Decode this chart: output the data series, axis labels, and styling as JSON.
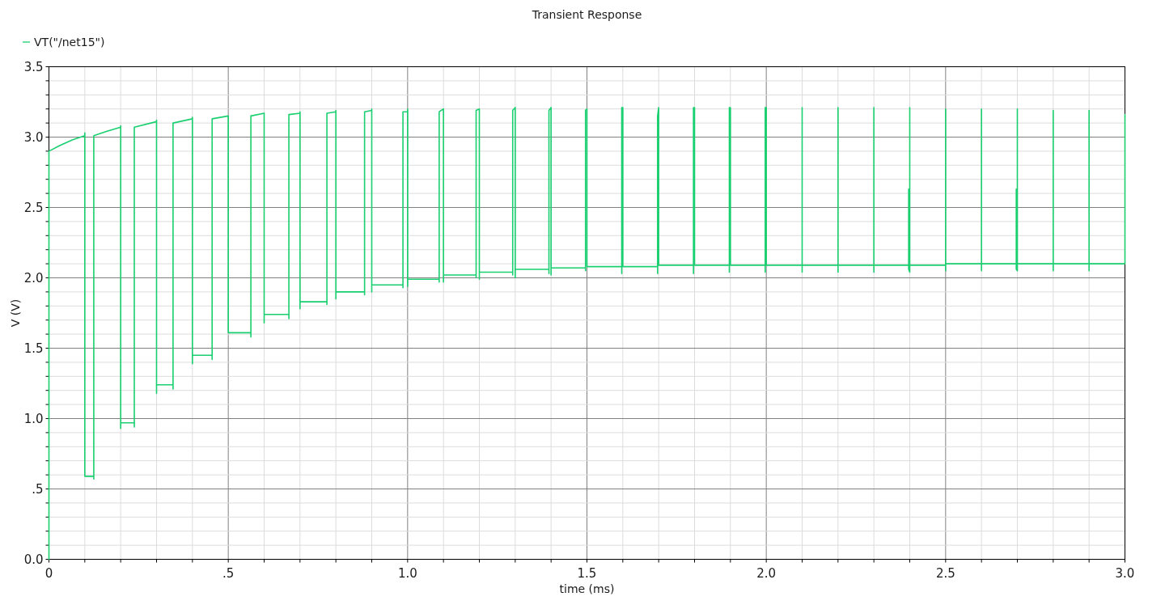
{
  "chart_data": {
    "type": "line",
    "title": "Transient Response",
    "xlabel": "time (ms)",
    "ylabel": "V (V)",
    "xlim": [
      0,
      3
    ],
    "ylim": [
      0,
      3.5
    ],
    "xticks": [
      0,
      {
        "value": 0.1,
        "label": null
      },
      {
        "value": 0.2,
        "label": null
      },
      {
        "value": 0.3,
        "label": null
      },
      {
        "value": 0.4,
        "label": null
      },
      {
        "value": 0.5,
        "label": ".5"
      },
      {
        "value": 0.6,
        "label": null
      },
      {
        "value": 0.7,
        "label": null
      },
      {
        "value": 0.8,
        "label": null
      },
      {
        "value": 0.9,
        "label": null
      },
      {
        "value": 1,
        "label": "1.0"
      },
      {
        "value": 1.1,
        "label": null
      },
      {
        "value": 1.2,
        "label": null
      },
      {
        "value": 1.3,
        "label": null
      },
      {
        "value": 1.4,
        "label": null
      },
      {
        "value": 1.5,
        "label": "1.5"
      },
      {
        "value": 1.6,
        "label": null
      },
      {
        "value": 1.7,
        "label": null
      },
      {
        "value": 1.8,
        "label": null
      },
      {
        "value": 1.9,
        "label": null
      },
      {
        "value": 2,
        "label": "2.0"
      },
      {
        "value": 2.1,
        "label": null
      },
      {
        "value": 2.2,
        "label": null
      },
      {
        "value": 2.3,
        "label": null
      },
      {
        "value": 2.4,
        "label": null
      },
      {
        "value": 2.5,
        "label": "2.5"
      },
      {
        "value": 2.6,
        "label": null
      },
      {
        "value": 2.7,
        "label": null
      },
      {
        "value": 2.8,
        "label": null
      },
      {
        "value": 2.9,
        "label": null
      },
      {
        "value": 3,
        "label": "3.0"
      }
    ],
    "yticks": [
      {
        "value": 0,
        "label": "0.0"
      },
      {
        "value": 0.1,
        "label": null
      },
      {
        "value": 0.2,
        "label": null
      },
      {
        "value": 0.3,
        "label": null
      },
      {
        "value": 0.4,
        "label": null
      },
      {
        "value": 0.5,
        "label": ".5"
      },
      {
        "value": 0.6,
        "label": null
      },
      {
        "value": 0.7,
        "label": null
      },
      {
        "value": 0.8,
        "label": null
      },
      {
        "value": 0.9,
        "label": null
      },
      {
        "value": 1,
        "label": "1.0"
      },
      {
        "value": 1.1,
        "label": null
      },
      {
        "value": 1.2,
        "label": null
      },
      {
        "value": 1.3,
        "label": null
      },
      {
        "value": 1.4,
        "label": null
      },
      {
        "value": 1.5,
        "label": "1.5"
      },
      {
        "value": 1.6,
        "label": null
      },
      {
        "value": 1.7,
        "label": null
      },
      {
        "value": 1.8,
        "label": null
      },
      {
        "value": 1.9,
        "label": null
      },
      {
        "value": 2,
        "label": "2.0"
      },
      {
        "value": 2.1,
        "label": null
      },
      {
        "value": 2.2,
        "label": null
      },
      {
        "value": 2.3,
        "label": null
      },
      {
        "value": 2.4,
        "label": null
      },
      {
        "value": 2.5,
        "label": "2.5"
      },
      {
        "value": 2.6,
        "label": null
      },
      {
        "value": 2.7,
        "label": null
      },
      {
        "value": 2.8,
        "label": null
      },
      {
        "value": 2.9,
        "label": null
      },
      {
        "value": 3,
        "label": "3.0"
      },
      {
        "value": 3.1,
        "label": null
      },
      {
        "value": 3.2,
        "label": null
      },
      {
        "value": 3.3,
        "label": null
      },
      {
        "value": 3.4,
        "label": null
      },
      {
        "value": 3.5,
        "label": "3.5"
      }
    ],
    "grid": true,
    "legend": "top left",
    "series": [
      {
        "name": "VT(\"/net15\")",
        "color": "#19cf6f",
        "x": [
          0,
          0,
          0.03,
          0.065,
          0.1,
          0.1,
          0.1,
          0.125,
          0.125,
          0.125,
          0.16,
          0.2,
          0.2,
          0.2,
          0.2,
          0.238,
          0.238,
          0.238,
          0.3,
          0.3,
          0.3,
          0.3,
          0.346,
          0.346,
          0.346,
          0.4,
          0.4,
          0.4,
          0.4,
          0.455,
          0.455,
          0.455,
          0.5,
          0.5,
          0.563,
          0.563,
          0.563,
          0.6,
          0.6,
          0.6,
          0.669,
          0.669,
          0.669,
          0.7,
          0.7,
          0.7,
          0.7,
          0.775,
          0.775,
          0.775,
          0.8,
          0.8,
          0.8,
          0.8,
          0.88,
          0.88,
          0.88,
          0.9,
          0.9,
          0.9,
          0.9,
          0.987,
          0.987,
          0.987,
          1,
          1,
          1,
          1,
          1.088,
          1.088,
          1.088,
          1.1,
          1.1,
          1.1,
          1.191,
          1.191,
          1.191,
          1.2,
          1.2,
          1.2,
          1.293,
          1.293,
          1.293,
          1.3,
          1.3,
          1.3,
          1.394,
          1.394,
          1.394,
          1.4,
          1.4,
          1.4,
          1.496,
          1.496,
          1.496,
          1.5,
          1.5,
          1.597,
          1.597,
          1.597,
          1.6,
          1.6,
          1.697,
          1.697,
          1.697,
          1.7,
          1.7,
          1.797,
          1.797,
          1.797,
          1.8,
          1.8,
          1.897,
          1.897,
          1.897,
          1.9,
          1.9,
          1.997,
          1.997,
          1.997,
          2,
          2,
          2.1,
          2.1,
          2.1,
          2.1,
          2.2,
          2.2,
          2.2,
          2.2,
          2.3,
          2.3,
          2.3,
          2.3,
          2.397,
          2.397,
          2.397,
          2.4,
          2.4,
          2.4,
          2.5,
          2.5,
          2.5,
          2.5,
          2.6,
          2.6,
          2.6,
          2.6,
          2.697,
          2.697,
          2.697,
          2.7,
          2.7,
          2.7,
          2.8,
          2.8,
          2.8,
          2.8,
          2.9,
          2.9,
          2.9,
          2.9,
          3,
          3
        ],
        "values": [
          0,
          2.9,
          2.94,
          2.98,
          3.01,
          3.03,
          0.59,
          0.59,
          0.57,
          3.01,
          3.04,
          3.07,
          3.08,
          0.93,
          0.97,
          0.97,
          0.94,
          3.07,
          3.11,
          3.12,
          1.18,
          1.24,
          1.24,
          1.21,
          3.1,
          3.13,
          3.14,
          1.39,
          1.45,
          1.45,
          1.42,
          3.13,
          3.15,
          1.61,
          1.61,
          1.58,
          3.15,
          3.17,
          1.68,
          1.74,
          1.74,
          1.71,
          3.16,
          3.17,
          3.18,
          1.78,
          1.83,
          1.83,
          1.81,
          3.17,
          3.18,
          3.19,
          1.85,
          1.9,
          1.9,
          1.88,
          3.18,
          3.19,
          3.2,
          1.9,
          1.95,
          1.95,
          1.93,
          3.18,
          3.18,
          3.2,
          1.94,
          1.99,
          1.99,
          1.97,
          3.18,
          3.2,
          1.97,
          2.02,
          2.02,
          2,
          3.19,
          3.2,
          1.99,
          2.04,
          2.04,
          2.02,
          3.19,
          3.21,
          2,
          2.06,
          2.06,
          2.03,
          3.19,
          3.21,
          2.02,
          2.07,
          2.07,
          2.05,
          3.19,
          3.2,
          2.08,
          2.08,
          2.03,
          3.21,
          3.21,
          2.08,
          2.08,
          2.03,
          3.15,
          3.21,
          2.09,
          2.09,
          2.03,
          3.21,
          3.21,
          2.09,
          2.09,
          2.04,
          3.21,
          3.21,
          2.09,
          2.09,
          2.04,
          3.21,
          3.21,
          2.09,
          2.09,
          2.04,
          3.21,
          2.09,
          2.09,
          2.04,
          3.21,
          2.09,
          2.09,
          2.04,
          3.21,
          2.09,
          2.09,
          2.63,
          2.06,
          2.04,
          3.21,
          2.09,
          2.09,
          2.05,
          3.2,
          2.1,
          2.1,
          2.05,
          3.2,
          2.1,
          2.1,
          2.63,
          2.06,
          2.05,
          3.2,
          2.1,
          2.1,
          2.05,
          3.19,
          2.1,
          2.1,
          2.05,
          3.19,
          2.1,
          2.1,
          3.16
        ]
      }
    ]
  }
}
